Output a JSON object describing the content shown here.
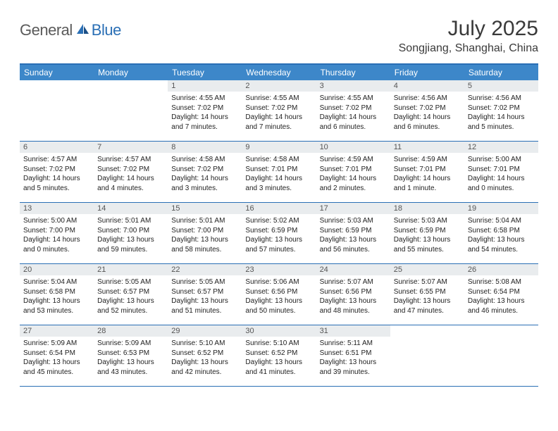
{
  "logo": {
    "general": "General",
    "blue": "Blue"
  },
  "title": "July 2025",
  "location": "Songjiang, Shanghai, China",
  "colors": {
    "accent": "#2a6fb5",
    "header_band": "#3d87c9",
    "daynum_bg": "#e9ecee",
    "text": "#222222",
    "muted": "#555555"
  },
  "days_of_week": [
    "Sunday",
    "Monday",
    "Tuesday",
    "Wednesday",
    "Thursday",
    "Friday",
    "Saturday"
  ],
  "weeks": [
    [
      null,
      null,
      {
        "n": "1",
        "sr": "4:55 AM",
        "ss": "7:02 PM",
        "dl": "14 hours and 7 minutes."
      },
      {
        "n": "2",
        "sr": "4:55 AM",
        "ss": "7:02 PM",
        "dl": "14 hours and 7 minutes."
      },
      {
        "n": "3",
        "sr": "4:55 AM",
        "ss": "7:02 PM",
        "dl": "14 hours and 6 minutes."
      },
      {
        "n": "4",
        "sr": "4:56 AM",
        "ss": "7:02 PM",
        "dl": "14 hours and 6 minutes."
      },
      {
        "n": "5",
        "sr": "4:56 AM",
        "ss": "7:02 PM",
        "dl": "14 hours and 5 minutes."
      }
    ],
    [
      {
        "n": "6",
        "sr": "4:57 AM",
        "ss": "7:02 PM",
        "dl": "14 hours and 5 minutes."
      },
      {
        "n": "7",
        "sr": "4:57 AM",
        "ss": "7:02 PM",
        "dl": "14 hours and 4 minutes."
      },
      {
        "n": "8",
        "sr": "4:58 AM",
        "ss": "7:02 PM",
        "dl": "14 hours and 3 minutes."
      },
      {
        "n": "9",
        "sr": "4:58 AM",
        "ss": "7:01 PM",
        "dl": "14 hours and 3 minutes."
      },
      {
        "n": "10",
        "sr": "4:59 AM",
        "ss": "7:01 PM",
        "dl": "14 hours and 2 minutes."
      },
      {
        "n": "11",
        "sr": "4:59 AM",
        "ss": "7:01 PM",
        "dl": "14 hours and 1 minute."
      },
      {
        "n": "12",
        "sr": "5:00 AM",
        "ss": "7:01 PM",
        "dl": "14 hours and 0 minutes."
      }
    ],
    [
      {
        "n": "13",
        "sr": "5:00 AM",
        "ss": "7:00 PM",
        "dl": "14 hours and 0 minutes."
      },
      {
        "n": "14",
        "sr": "5:01 AM",
        "ss": "7:00 PM",
        "dl": "13 hours and 59 minutes."
      },
      {
        "n": "15",
        "sr": "5:01 AM",
        "ss": "7:00 PM",
        "dl": "13 hours and 58 minutes."
      },
      {
        "n": "16",
        "sr": "5:02 AM",
        "ss": "6:59 PM",
        "dl": "13 hours and 57 minutes."
      },
      {
        "n": "17",
        "sr": "5:03 AM",
        "ss": "6:59 PM",
        "dl": "13 hours and 56 minutes."
      },
      {
        "n": "18",
        "sr": "5:03 AM",
        "ss": "6:59 PM",
        "dl": "13 hours and 55 minutes."
      },
      {
        "n": "19",
        "sr": "5:04 AM",
        "ss": "6:58 PM",
        "dl": "13 hours and 54 minutes."
      }
    ],
    [
      {
        "n": "20",
        "sr": "5:04 AM",
        "ss": "6:58 PM",
        "dl": "13 hours and 53 minutes."
      },
      {
        "n": "21",
        "sr": "5:05 AM",
        "ss": "6:57 PM",
        "dl": "13 hours and 52 minutes."
      },
      {
        "n": "22",
        "sr": "5:05 AM",
        "ss": "6:57 PM",
        "dl": "13 hours and 51 minutes."
      },
      {
        "n": "23",
        "sr": "5:06 AM",
        "ss": "6:56 PM",
        "dl": "13 hours and 50 minutes."
      },
      {
        "n": "24",
        "sr": "5:07 AM",
        "ss": "6:56 PM",
        "dl": "13 hours and 48 minutes."
      },
      {
        "n": "25",
        "sr": "5:07 AM",
        "ss": "6:55 PM",
        "dl": "13 hours and 47 minutes."
      },
      {
        "n": "26",
        "sr": "5:08 AM",
        "ss": "6:54 PM",
        "dl": "13 hours and 46 minutes."
      }
    ],
    [
      {
        "n": "27",
        "sr": "5:09 AM",
        "ss": "6:54 PM",
        "dl": "13 hours and 45 minutes."
      },
      {
        "n": "28",
        "sr": "5:09 AM",
        "ss": "6:53 PM",
        "dl": "13 hours and 43 minutes."
      },
      {
        "n": "29",
        "sr": "5:10 AM",
        "ss": "6:52 PM",
        "dl": "13 hours and 42 minutes."
      },
      {
        "n": "30",
        "sr": "5:10 AM",
        "ss": "6:52 PM",
        "dl": "13 hours and 41 minutes."
      },
      {
        "n": "31",
        "sr": "5:11 AM",
        "ss": "6:51 PM",
        "dl": "13 hours and 39 minutes."
      },
      null,
      null
    ]
  ],
  "labels": {
    "sunrise": "Sunrise:",
    "sunset": "Sunset:",
    "daylight": "Daylight:"
  }
}
